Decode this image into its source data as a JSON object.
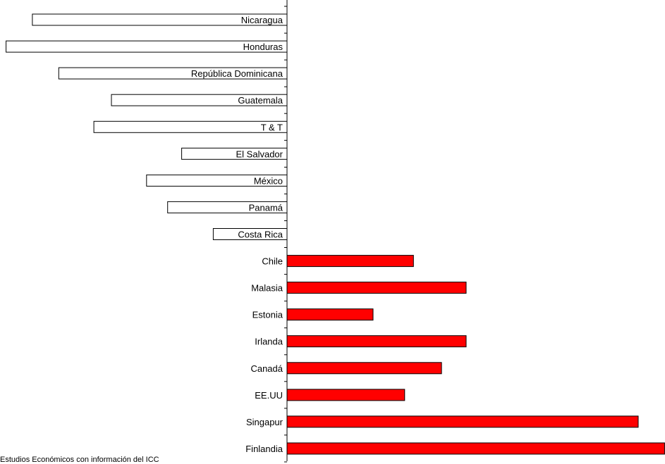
{
  "chart_data": {
    "type": "bar",
    "orientation": "horizontal",
    "categories": [
      "Nicaragua",
      "Honduras",
      "República Dominicana",
      "Guatemala",
      "T & T",
      "El Salvador",
      "México",
      "Panamá",
      "Costa Rica",
      "Chile",
      "Malasia",
      "Estonia",
      "Irlanda",
      "Canadá",
      "EE.UU",
      "Singapur",
      "Finlandia"
    ],
    "values": [
      -1.45,
      -1.6,
      -1.3,
      -1.0,
      -1.1,
      -0.6,
      -0.8,
      -0.68,
      -0.42,
      0.72,
      1.02,
      0.49,
      1.02,
      0.88,
      0.67,
      2.0,
      2.15
    ],
    "colors": {
      "negative_fill": "#ffffff",
      "positive_fill": "#ff0000",
      "stroke": "#000000"
    },
    "grid": false,
    "legend": "none"
  },
  "source": "Estudios Económicos con información del ICC"
}
